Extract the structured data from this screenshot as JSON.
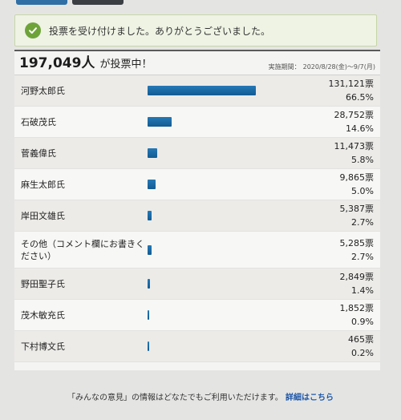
{
  "notice": {
    "text": "投票を受け付けました。ありがとうございました。"
  },
  "summary": {
    "total_votes": "197,049人",
    "total_suffix": "が投票中！",
    "period_label": "実施期間：",
    "period_value": "2020/8/28(金)～9/7(月)"
  },
  "results": [
    {
      "name": "河野太郎氏",
      "votes": "131,121票",
      "percent": "66.5%",
      "share": 66.5
    },
    {
      "name": "石破茂氏",
      "votes": "28,752票",
      "percent": "14.6%",
      "share": 14.6
    },
    {
      "name": "菅義偉氏",
      "votes": "11,473票",
      "percent": "5.8%",
      "share": 5.8
    },
    {
      "name": "麻生太郎氏",
      "votes": "9,865票",
      "percent": "5.0%",
      "share": 5.0
    },
    {
      "name": "岸田文雄氏",
      "votes": "5,387票",
      "percent": "2.7%",
      "share": 2.7
    },
    {
      "name": "その他（コメント欄にお書きください）",
      "votes": "5,285票",
      "percent": "2.7%",
      "share": 2.7
    },
    {
      "name": "野田聖子氏",
      "votes": "2,849票",
      "percent": "1.4%",
      "share": 1.4
    },
    {
      "name": "茂木敏充氏",
      "votes": "1,852票",
      "percent": "0.9%",
      "share": 0.9
    },
    {
      "name": "下村博文氏",
      "votes": "465票",
      "percent": "0.2%",
      "share": 0.2
    }
  ],
  "footer": {
    "text": "「みんなの意見」の情報はどなたでもご利用いただけます。",
    "link_label": "詳細はこちら"
  },
  "colors": {
    "bar": "#1a67a3",
    "notice_icon": "#6ea33a",
    "link": "#1f57a8"
  }
}
